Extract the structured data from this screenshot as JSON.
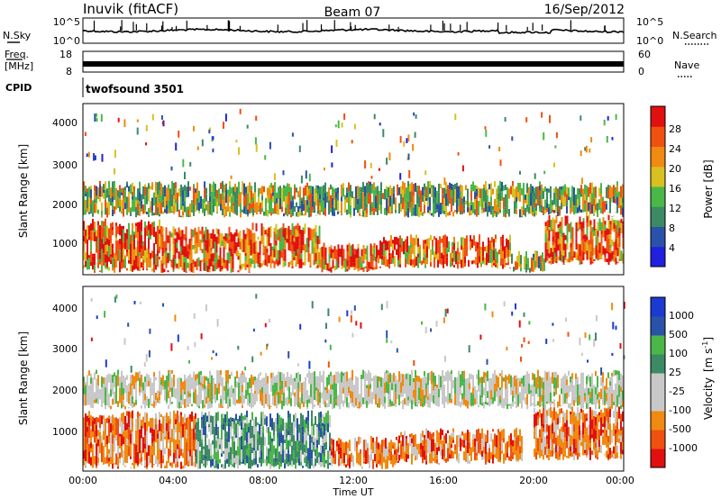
{
  "header": {
    "station": "Inuvik (fitACF)",
    "beam": "Beam 07",
    "date": "16/Sep/2012"
  },
  "noise_panel": {
    "left_label": "N.Sky",
    "left_ticks": [
      "10^5",
      "10^0"
    ],
    "right_label": "N.Search",
    "right_ticks": [
      "10^5",
      "10^0"
    ]
  },
  "freq_panel": {
    "left_label_line1": "Freq.",
    "left_label_line2": "[MHz]",
    "left_ticks": [
      "18",
      "8"
    ],
    "right_label": "Nave",
    "right_ticks": [
      "60",
      "0"
    ]
  },
  "cpid": {
    "label": "CPID",
    "value": "twofsound 3501"
  },
  "chart_data": [
    {
      "type": "heatmap",
      "title": "",
      "xlabel": "",
      "ylabel": "Slant Range [km]",
      "x_range_hours": [
        0,
        24
      ],
      "ylim": [
        180,
        4500
      ],
      "y_ticks": [
        "1000",
        "2000",
        "3000",
        "4000"
      ],
      "colorbar": {
        "label": "Power [dB]",
        "ticks": [
          "4",
          "8",
          "12",
          "16",
          "20",
          "24",
          "28"
        ],
        "range": [
          0,
          32
        ]
      },
      "echo_regions": [
        {
          "t0": 0.0,
          "t1": 3.5,
          "r0": 300,
          "r1": 1500,
          "level": "high"
        },
        {
          "t0": 3.5,
          "t1": 7.5,
          "r0": 300,
          "r1": 1300,
          "level": "high"
        },
        {
          "t0": 7.5,
          "t1": 10.5,
          "r0": 400,
          "r1": 1400,
          "level": "high"
        },
        {
          "t0": 10.5,
          "t1": 13.0,
          "r0": 300,
          "r1": 900,
          "level": "high"
        },
        {
          "t0": 13.0,
          "t1": 19.0,
          "r0": 400,
          "r1": 1100,
          "level": "high"
        },
        {
          "t0": 19.0,
          "t1": 20.5,
          "r0": 300,
          "r1": 700,
          "level": "medium"
        },
        {
          "t0": 20.5,
          "t1": 24.0,
          "r0": 500,
          "r1": 1600,
          "level": "high"
        },
        {
          "t0": 0.0,
          "t1": 24.0,
          "r0": 1700,
          "r1": 2450,
          "level": "medium"
        }
      ]
    },
    {
      "type": "heatmap",
      "title": "",
      "xlabel": "Time UT",
      "ylabel": "Slant Range [km]",
      "x_range_hours": [
        0,
        24
      ],
      "x_ticks": [
        "00:00",
        "04:00",
        "08:00",
        "12:00",
        "16:00",
        "20:00",
        "00:00"
      ],
      "ylim": [
        180,
        4500
      ],
      "y_ticks": [
        "1000",
        "2000",
        "3000",
        "4000"
      ],
      "colorbar": {
        "label": "Velocity",
        "unit_prefix": "[m s",
        "unit_exp": "-1",
        "unit_suffix": "]",
        "ticks": [
          "-1000",
          "-500",
          "-100",
          "-25",
          "25",
          "100",
          "500",
          "1000"
        ]
      },
      "velocity_regions": [
        {
          "t0": 0.0,
          "t1": 5.0,
          "r0": 300,
          "r1": 1500,
          "velocity": -300
        },
        {
          "t0": 5.0,
          "t1": 11.0,
          "r0": 300,
          "r1": 1500,
          "velocity": 300
        },
        {
          "t0": 11.0,
          "t1": 14.0,
          "r0": 300,
          "r1": 900,
          "velocity": -300
        },
        {
          "t0": 14.0,
          "t1": 19.5,
          "r0": 400,
          "r1": 1100,
          "velocity": -300
        },
        {
          "t0": 20.0,
          "t1": 24.0,
          "r0": 500,
          "r1": 1600,
          "velocity": -300
        },
        {
          "t0": 0.0,
          "t1": 24.0,
          "r0": 1700,
          "r1": 2450,
          "velocity": 0
        }
      ]
    }
  ],
  "colors": {
    "power_scale": [
      "#2020e0",
      "#2a52a8",
      "#3c8a64",
      "#4ab848",
      "#d8c020",
      "#f08a10",
      "#f05010",
      "#e01010"
    ],
    "velocity_scale": [
      "#e01010",
      "#f05010",
      "#f08a10",
      "#c8c8c8",
      "#c8c8c8",
      "#3c8a64",
      "#4ab848",
      "#2a52a8",
      "#1a3ad0"
    ]
  }
}
